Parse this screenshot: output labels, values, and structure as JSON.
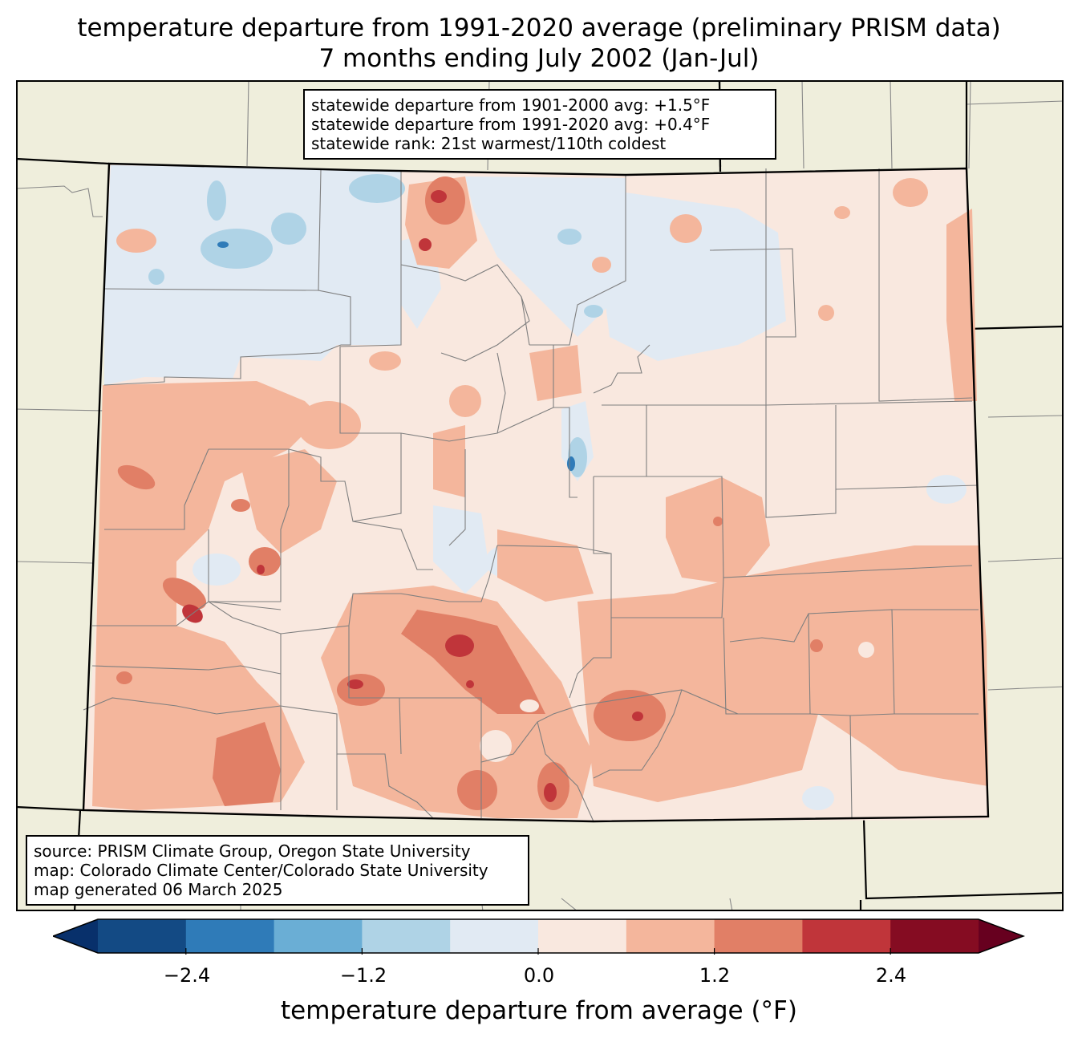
{
  "title": {
    "line1": "temperature departure from 1991-2020 average (preliminary PRISM data)",
    "line2": "7 months ending July 2002 (Jan-Jul)"
  },
  "stats": {
    "line1": "statewide departure from 1901-2000 avg: +1.5°F",
    "line2": "statewide departure from 1991-2020 avg: +0.4°F",
    "line3": "statewide rank: 21st warmest/110th coldest"
  },
  "source": {
    "line1": "source: PRISM Climate Group, Oregon State University",
    "line2": "map: Colorado Climate Center/Colorado State University",
    "line3": "map generated 06 March 2025"
  },
  "colorbar": {
    "label": "temperature departure from average (°F)",
    "ticks": [
      "−2.4",
      "−1.2",
      "0.0",
      "1.2",
      "2.4"
    ],
    "colors": [
      "#08306b",
      "#134a84",
      "#2f7bb8",
      "#6aaed5",
      "#afd3e6",
      "#e1eaf3",
      "#f9e8df",
      "#f4b69c",
      "#e17f66",
      "#c0353a",
      "#850c22",
      "#67001f"
    ]
  },
  "map": {
    "background_color": "#efeedc",
    "state": "Colorado"
  }
}
